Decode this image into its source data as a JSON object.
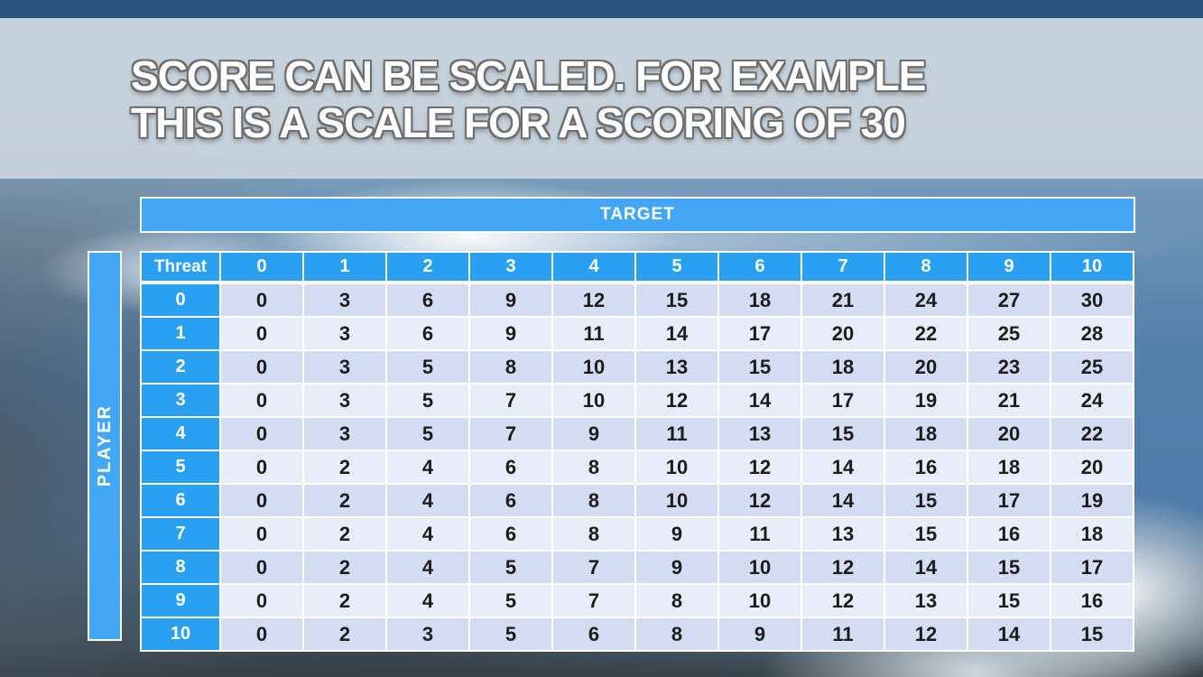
{
  "slide": {
    "title_line1": "SCORE CAN BE SCALED. FOR EXAMPLE",
    "title_line2": "THIS IS A SCALE FOR A SCORING OF 30"
  },
  "matrix": {
    "target_label": "TARGET",
    "player_label": "PLAYER",
    "corner_label": "Threat",
    "column_headers": [
      "0",
      "1",
      "2",
      "3",
      "4",
      "5",
      "6",
      "7",
      "8",
      "9",
      "10"
    ],
    "rows": [
      {
        "threat": "0",
        "values": [
          0,
          3,
          6,
          9,
          12,
          15,
          18,
          21,
          24,
          27,
          30
        ]
      },
      {
        "threat": "1",
        "values": [
          0,
          3,
          6,
          9,
          11,
          14,
          17,
          20,
          22,
          25,
          28
        ]
      },
      {
        "threat": "2",
        "values": [
          0,
          3,
          5,
          8,
          10,
          13,
          15,
          18,
          20,
          23,
          25
        ]
      },
      {
        "threat": "3",
        "values": [
          0,
          3,
          5,
          7,
          10,
          12,
          14,
          17,
          19,
          21,
          24
        ]
      },
      {
        "threat": "4",
        "values": [
          0,
          3,
          5,
          7,
          9,
          11,
          13,
          15,
          18,
          20,
          22
        ]
      },
      {
        "threat": "5",
        "values": [
          0,
          2,
          4,
          6,
          8,
          10,
          12,
          14,
          16,
          18,
          20
        ]
      },
      {
        "threat": "6",
        "values": [
          0,
          2,
          4,
          6,
          8,
          10,
          12,
          14,
          15,
          17,
          19
        ]
      },
      {
        "threat": "7",
        "values": [
          0,
          2,
          4,
          6,
          8,
          9,
          11,
          13,
          15,
          16,
          18
        ]
      },
      {
        "threat": "8",
        "values": [
          0,
          2,
          4,
          5,
          7,
          9,
          10,
          12,
          14,
          15,
          17
        ]
      },
      {
        "threat": "9",
        "values": [
          0,
          2,
          4,
          5,
          7,
          8,
          10,
          12,
          13,
          15,
          16
        ]
      },
      {
        "threat": "10",
        "values": [
          0,
          2,
          3,
          5,
          6,
          8,
          9,
          11,
          12,
          14,
          15
        ]
      }
    ]
  },
  "colors": {
    "header_blue": "#29A0F1",
    "bar_blue": "#42A7F6",
    "row_even": "#D4DCF3",
    "row_odd": "#E9EDF9",
    "cell_text": "#1C1C1C",
    "title_text": "#FFFFFF",
    "title_outline": "#6E6E6E",
    "title_band": "#CBD5DE"
  }
}
